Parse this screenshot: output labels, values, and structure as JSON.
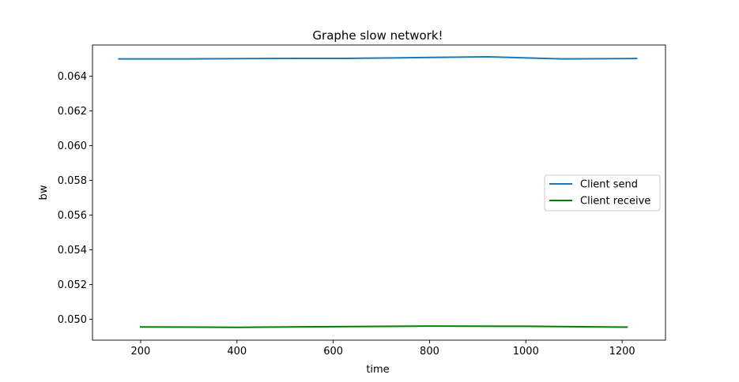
{
  "chart_data": {
    "type": "line",
    "title": "Graphe slow network!",
    "xlabel": "time",
    "ylabel": "bw",
    "xlim": [
      100,
      1290
    ],
    "ylim": [
      0.0488,
      0.0658
    ],
    "xticks": [
      200,
      400,
      600,
      800,
      1000,
      1200
    ],
    "yticks": [
      0.05,
      0.052,
      0.054,
      0.056,
      0.058,
      0.06,
      0.062,
      0.064
    ],
    "ytick_labels": [
      "0.050",
      "0.052",
      "0.054",
      "0.056",
      "0.058",
      "0.060",
      "0.062",
      "0.064"
    ],
    "grid": false,
    "legend_position": "center-right",
    "series": [
      {
        "name": "Client send",
        "color": "#1f77b4",
        "x": [
          155,
          310,
          460,
          620,
          770,
          920,
          1075,
          1230
        ],
        "y": [
          0.065,
          0.065,
          0.06502,
          0.06503,
          0.06507,
          0.06512,
          0.065,
          0.06502
        ]
      },
      {
        "name": "Client receive",
        "color": "#008000",
        "x": [
          200,
          400,
          600,
          800,
          1000,
          1210
        ],
        "y": [
          0.04956,
          0.04954,
          0.04958,
          0.04961,
          0.0496,
          0.04955
        ]
      }
    ]
  }
}
